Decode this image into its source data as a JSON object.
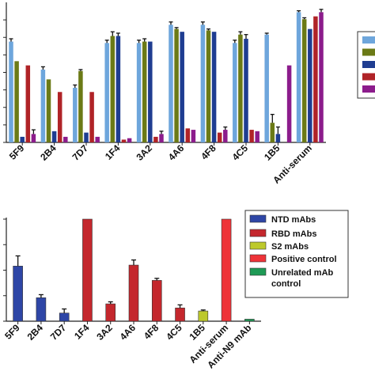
{
  "chart_data": [
    {
      "type": "bar",
      "title": "",
      "xlabel": "",
      "ylabel": "",
      "ylim": [
        0,
        1.0
      ],
      "grid": false,
      "legend_placement": "right (clipped)",
      "categories": [
        "5F9",
        "2B4",
        "7D7",
        "1F4",
        "3A2",
        "4A6",
        "4F8",
        "4C5",
        "1B5",
        "Anti-serum"
      ],
      "series": [
        {
          "color": "#6ea6dc",
          "values": [
            0.72,
            0.52,
            0.39,
            0.71,
            0.71,
            0.84,
            0.84,
            0.71,
            0.77,
            0.93
          ],
          "errors": [
            0.02,
            0.02,
            0.02,
            0.02,
            0.02,
            0.02,
            0.02,
            0.02,
            0.01,
            0.01
          ]
        },
        {
          "color": "#6b7a16",
          "values": [
            0.58,
            0.45,
            0.51,
            0.76,
            0.72,
            0.81,
            0.8,
            0.77,
            0.14,
            0.88
          ],
          "errors": [
            0.0,
            0.0,
            0.01,
            0.03,
            0.02,
            0.01,
            0.01,
            0.02,
            0.06,
            0.01
          ]
        },
        {
          "color": "#1f3d91",
          "values": [
            0.04,
            0.08,
            0.07,
            0.76,
            0.72,
            0.79,
            0.79,
            0.74,
            0.06,
            0.81
          ],
          "errors": [
            0.0,
            0.0,
            0.0,
            0.02,
            0.0,
            0.0,
            0.0,
            0.03,
            0.05,
            0.0
          ]
        },
        {
          "color": "#b02327",
          "values": [
            0.55,
            0.36,
            0.36,
            0.02,
            0.04,
            0.1,
            0.07,
            0.09,
            0.0,
            0.9
          ],
          "errors": [
            0.0,
            0.0,
            0.0,
            0.0,
            0.0,
            0.0,
            0.0,
            0.0,
            0.0,
            0.0
          ]
        },
        {
          "color": "#8c1c8c",
          "values": [
            0.06,
            0.04,
            0.04,
            0.03,
            0.06,
            0.09,
            0.09,
            0.08,
            0.55,
            0.93
          ],
          "errors": [
            0.03,
            0.0,
            0.0,
            0.0,
            0.02,
            0.0,
            0.02,
            0.0,
            0.0,
            0.02
          ]
        }
      ]
    },
    {
      "type": "bar",
      "title": "",
      "xlabel": "",
      "ylabel": "",
      "ylim": [
        0,
        1.0
      ],
      "grid": false,
      "legend_placement": "top-right",
      "categories": [
        "5F9",
        "2B4",
        "7D7",
        "1F4",
        "3A2",
        "4A6",
        "4F8",
        "4C5",
        "1B5",
        "Anti-serum",
        "Anti-N9 mAb"
      ],
      "values": [
        0.54,
        0.23,
        0.08,
        1.0,
        0.17,
        0.55,
        0.4,
        0.13,
        0.1,
        1.0,
        0.02
      ],
      "errors": [
        0.1,
        0.03,
        0.04,
        0.0,
        0.02,
        0.05,
        0.02,
        0.03,
        0.01,
        0.0,
        0.0
      ],
      "groups": [
        "ntd",
        "ntd",
        "ntd",
        "rbd",
        "rbd",
        "rbd",
        "rbd",
        "rbd",
        "s2",
        "pos",
        "unrel"
      ],
      "legend": [
        {
          "key": "ntd",
          "label": "NTD mAbs",
          "color": "#2e46a6"
        },
        {
          "key": "rbd",
          "label": "RBD mAbs",
          "color": "#c4272d"
        },
        {
          "key": "s2",
          "label": "S2 mAbs",
          "color": "#bdc92b"
        },
        {
          "key": "pos",
          "label": "Positive control",
          "color": "#ee3338"
        },
        {
          "key": "unrel",
          "label": "Unrelated mAb control",
          "color": "#1e9a55"
        }
      ]
    }
  ]
}
